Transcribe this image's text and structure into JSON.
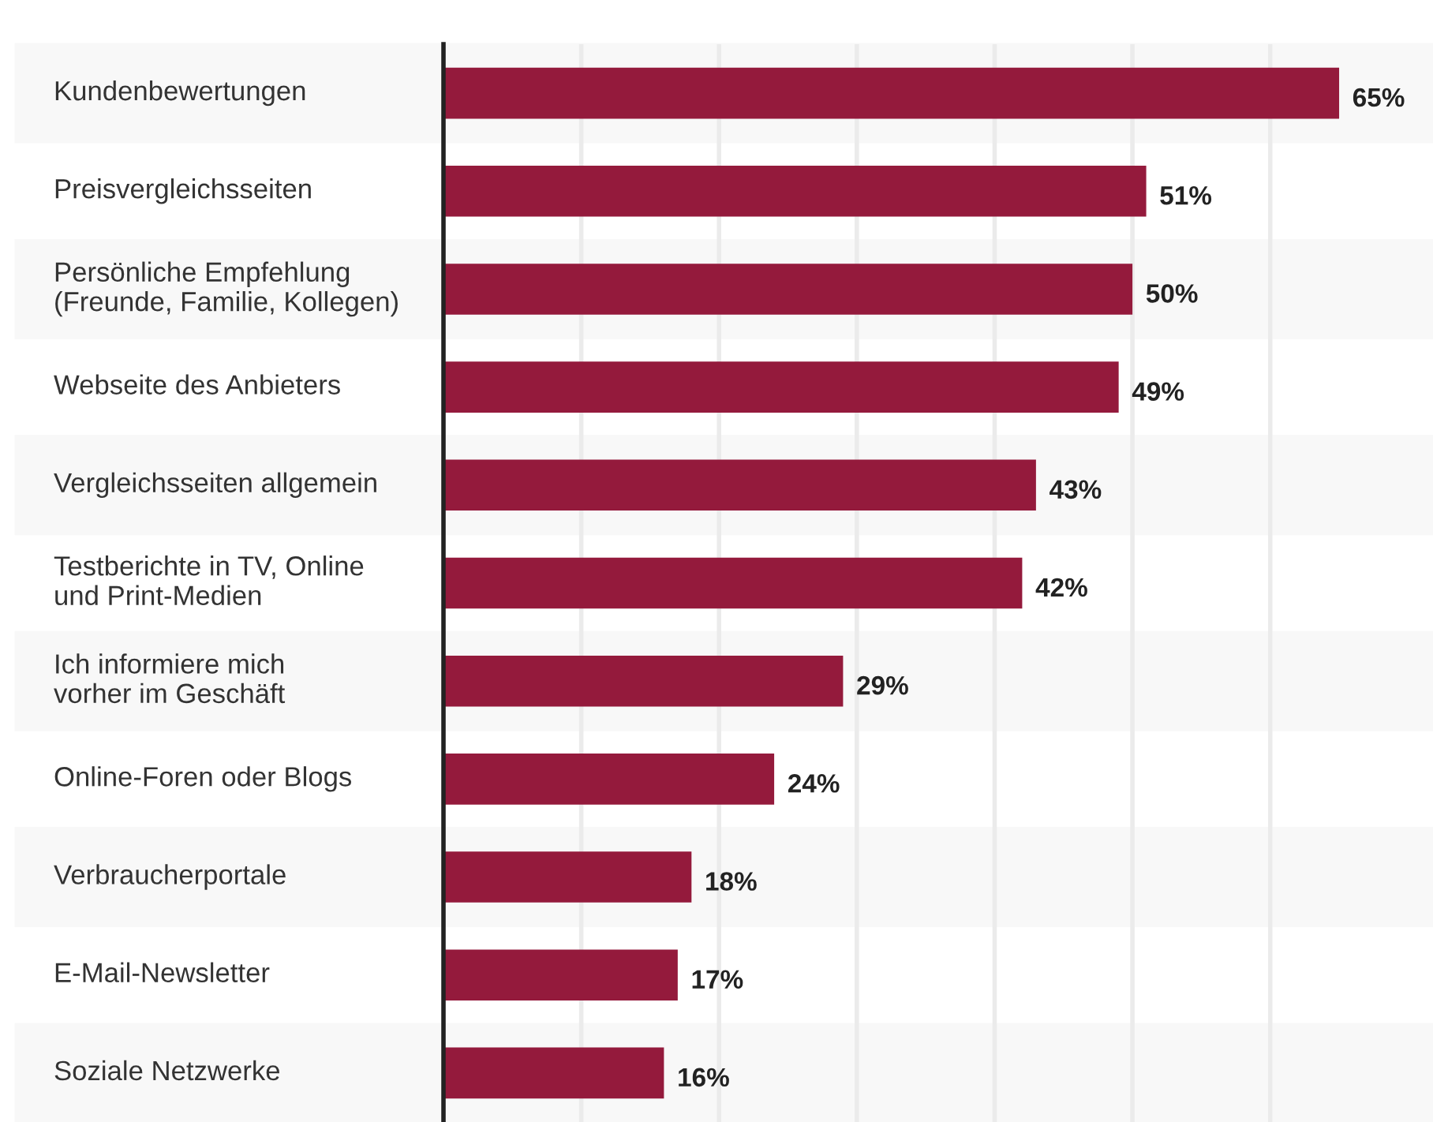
{
  "chart_data": {
    "type": "bar",
    "orientation": "horizontal",
    "categories": [
      "Kundenbewertungen",
      "Preisvergleichsseiten",
      "Persönliche Empfehlung\n(Freunde, Familie, Kollegen)",
      "Webseite des Anbieters",
      "Vergleichsseiten allgemein",
      "Testberichte in TV, Online\nund Print-Medien",
      "Ich informiere mich\nvorher im Geschäft",
      "Online-Foren oder Blogs",
      "Verbraucherportale",
      "E-Mail-Newsletter",
      "Soziale Netzwerke"
    ],
    "values": [
      65,
      51,
      50,
      49,
      43,
      42,
      29,
      24,
      18,
      17,
      16
    ],
    "value_labels": [
      "65%",
      "51%",
      "50%",
      "49%",
      "43%",
      "42%",
      "29%",
      "24%",
      "18%",
      "17%",
      "16%"
    ],
    "color": "#941a3c",
    "xticks": [
      {
        "value": 0,
        "label": null
      },
      {
        "value": 10,
        "label": null
      },
      {
        "value": 20,
        "label": null
      },
      {
        "value": 30,
        "label": null
      },
      {
        "value": 40,
        "label": null
      },
      {
        "value": 50,
        "label": null
      },
      {
        "value": 60,
        "label": null
      }
    ],
    "grid": "x"
  }
}
